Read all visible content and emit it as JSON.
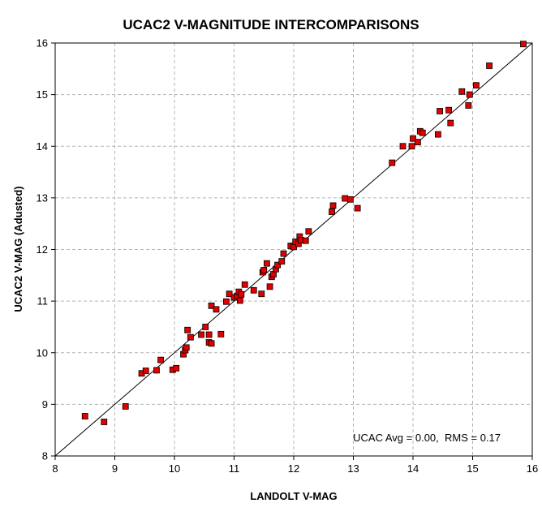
{
  "chart_data": {
    "type": "scatter",
    "title": "UCAC2 V-MAGNITUDE INTERCOMPARISONS",
    "xlabel": "LANDOLT V-MAG",
    "ylabel": "UCAC2 V-MAG (Adusted)",
    "xlim": [
      8,
      16
    ],
    "ylim": [
      8,
      16
    ],
    "xticks": [
      "8",
      "9",
      "10",
      "11",
      "12",
      "13",
      "14",
      "15",
      "16"
    ],
    "yticks": [
      "8",
      "9",
      "10",
      "11",
      "12",
      "13",
      "14",
      "15",
      "16"
    ],
    "grid": true,
    "annotation": "UCAC Avg = 0.00,  RMS = 0.17",
    "reference_line": {
      "from": [
        8,
        8
      ],
      "to": [
        16,
        16
      ]
    },
    "marker_color": "#e00000",
    "points": [
      [
        8.5,
        8.77
      ],
      [
        8.82,
        8.66
      ],
      [
        9.18,
        8.96
      ],
      [
        9.45,
        9.6
      ],
      [
        9.52,
        9.65
      ],
      [
        9.7,
        9.66
      ],
      [
        9.77,
        9.86
      ],
      [
        9.97,
        9.67
      ],
      [
        10.03,
        9.7
      ],
      [
        10.15,
        9.97
      ],
      [
        10.18,
        10.05
      ],
      [
        10.2,
        10.1
      ],
      [
        10.22,
        10.44
      ],
      [
        10.27,
        10.3
      ],
      [
        10.45,
        10.35
      ],
      [
        10.52,
        10.5
      ],
      [
        10.58,
        10.35
      ],
      [
        10.58,
        10.2
      ],
      [
        10.62,
        10.18
      ],
      [
        10.62,
        10.91
      ],
      [
        10.7,
        10.84
      ],
      [
        10.78,
        10.36
      ],
      [
        10.87,
        10.99
      ],
      [
        10.92,
        11.14
      ],
      [
        11.0,
        11.07
      ],
      [
        11.05,
        11.1
      ],
      [
        11.08,
        11.18
      ],
      [
        11.1,
        11.01
      ],
      [
        11.12,
        11.13
      ],
      [
        11.18,
        11.32
      ],
      [
        11.33,
        11.21
      ],
      [
        11.46,
        11.14
      ],
      [
        11.48,
        11.56
      ],
      [
        11.5,
        11.6
      ],
      [
        11.55,
        11.73
      ],
      [
        11.6,
        11.28
      ],
      [
        11.63,
        11.47
      ],
      [
        11.66,
        11.52
      ],
      [
        11.7,
        11.62
      ],
      [
        11.73,
        11.7
      ],
      [
        11.8,
        11.77
      ],
      [
        11.83,
        11.92
      ],
      [
        11.95,
        12.07
      ],
      [
        12.0,
        12.05
      ],
      [
        12.03,
        12.15
      ],
      [
        12.08,
        12.11
      ],
      [
        12.1,
        12.25
      ],
      [
        12.12,
        12.18
      ],
      [
        12.2,
        12.17
      ],
      [
        12.25,
        12.35
      ],
      [
        12.64,
        12.73
      ],
      [
        12.66,
        12.85
      ],
      [
        12.86,
        12.99
      ],
      [
        12.95,
        12.97
      ],
      [
        13.07,
        12.8
      ],
      [
        13.65,
        13.68
      ],
      [
        13.83,
        14.0
      ],
      [
        13.98,
        14.0
      ],
      [
        14.0,
        14.15
      ],
      [
        14.08,
        14.08
      ],
      [
        14.12,
        14.29
      ],
      [
        14.16,
        14.26
      ],
      [
        14.42,
        14.23
      ],
      [
        14.45,
        14.68
      ],
      [
        14.6,
        14.7
      ],
      [
        14.63,
        14.45
      ],
      [
        14.82,
        15.06
      ],
      [
        14.93,
        14.79
      ],
      [
        14.95,
        15.0
      ],
      [
        15.06,
        15.18
      ],
      [
        15.28,
        15.56
      ],
      [
        15.85,
        15.98
      ]
    ]
  }
}
